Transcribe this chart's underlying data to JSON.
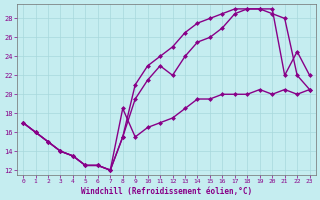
{
  "xlabel": "Windchill (Refroidissement éolien,°C)",
  "xlim": [
    -0.5,
    23.5
  ],
  "ylim": [
    11.5,
    29.5
  ],
  "xticks": [
    0,
    1,
    2,
    3,
    4,
    5,
    6,
    7,
    8,
    9,
    10,
    11,
    12,
    13,
    14,
    15,
    16,
    17,
    18,
    19,
    20,
    21,
    22,
    23
  ],
  "yticks": [
    12,
    14,
    16,
    18,
    20,
    22,
    24,
    26,
    28
  ],
  "background_color": "#c5edf0",
  "grid_color": "#a8d8dc",
  "line_color": "#880088",
  "line1_x": [
    0,
    1,
    2,
    3,
    4,
    5,
    6,
    7,
    8,
    9,
    10,
    11,
    12,
    13,
    14,
    15,
    16,
    17,
    18,
    19,
    20,
    21,
    22,
    23
  ],
  "line1_y": [
    17,
    16,
    15,
    14,
    13.5,
    12.5,
    12.5,
    12,
    18.5,
    15.5,
    16.5,
    17,
    17.5,
    18.5,
    19.5,
    19.5,
    20,
    20,
    20,
    20.5,
    20,
    20.5,
    20,
    20.5
  ],
  "line2_x": [
    0,
    1,
    2,
    3,
    4,
    5,
    6,
    7,
    8,
    9,
    10,
    11,
    12,
    13,
    14,
    15,
    16,
    17,
    18,
    19,
    20,
    21,
    22,
    23
  ],
  "line2_y": [
    17,
    16,
    15,
    14,
    13.5,
    12.5,
    12.5,
    12,
    15.5,
    19.5,
    21.5,
    23,
    22,
    24,
    25.5,
    26,
    27,
    28.5,
    29,
    29,
    28.5,
    28,
    22,
    20.5
  ],
  "line3_x": [
    0,
    1,
    2,
    3,
    4,
    5,
    6,
    7,
    8,
    9,
    10,
    11,
    12,
    13,
    14,
    15,
    16,
    17,
    18,
    19,
    20,
    21,
    22,
    23
  ],
  "line3_y": [
    17,
    16,
    15,
    14,
    13.5,
    12.5,
    12.5,
    12,
    15.5,
    21,
    23,
    24,
    25,
    26.5,
    27.5,
    28,
    28.5,
    29,
    29,
    29,
    29,
    22,
    24.5,
    22
  ],
  "marker": "D",
  "markersize": 2.5,
  "linewidth": 1.0
}
